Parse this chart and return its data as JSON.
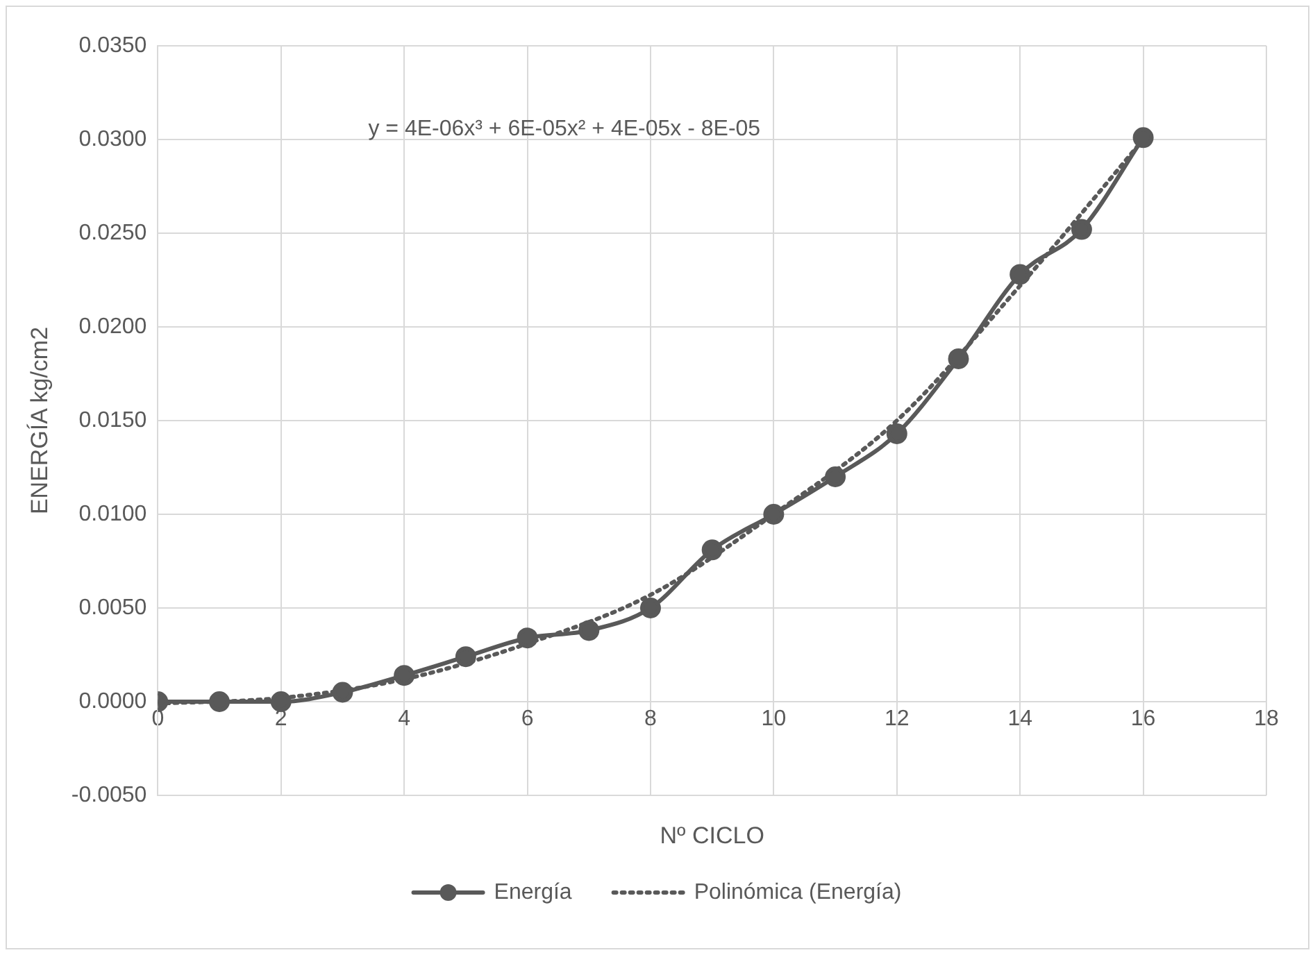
{
  "chart_data": {
    "type": "line",
    "xlabel": "Nº CICLO",
    "ylabel": "ENERGÍA kg/cm2",
    "x": [
      0,
      1,
      2,
      3,
      4,
      5,
      6,
      7,
      8,
      9,
      10,
      11,
      12,
      13,
      14,
      15,
      16
    ],
    "series": [
      {
        "name": "Energía",
        "color": "#595959",
        "values": [
          0,
          0,
          0,
          0.0005,
          0.0014,
          0.0024,
          0.0034,
          0.0038,
          0.005,
          0.0081,
          0.01,
          0.012,
          0.0143,
          0.0183,
          0.0228,
          0.0252,
          0.0301
        ],
        "marker": "circle",
        "line_style": "solid"
      },
      {
        "name": "Polinómica (Energía)",
        "color": "#595959",
        "type": "line",
        "x": [
          0,
          2,
          4,
          6,
          8,
          10,
          12,
          14,
          16
        ],
        "values": [
          -0.0001,
          0.0002,
          0.0012,
          0.0031,
          0.0057,
          0.01,
          0.015,
          0.0222,
          0.03
        ],
        "marker": "none",
        "line_style": "dotted"
      }
    ],
    "annotations": [
      "y = 4E-06x³ + 6E-05x² + 4E-05x - 8E-05"
    ],
    "xlim": [
      0,
      18
    ],
    "xticks": [
      0,
      2,
      4,
      6,
      8,
      10,
      12,
      14,
      16,
      18
    ],
    "ylim": [
      -0.005,
      0.035
    ],
    "yticks": [
      {
        "value": -0.005,
        "label": "-0.0050"
      },
      {
        "value": 0,
        "label": "0.0000"
      },
      {
        "value": 0.005,
        "label": "0.0050"
      },
      {
        "value": 0.01,
        "label": "0.0100"
      },
      {
        "value": 0.015,
        "label": "0.0150"
      },
      {
        "value": 0.02,
        "label": "0.0200"
      },
      {
        "value": 0.025,
        "label": "0.0250"
      },
      {
        "value": 0.03,
        "label": "0.0300"
      },
      {
        "value": 0.035,
        "label": "0.0350"
      }
    ],
    "grid": true,
    "legend": "bottom"
  }
}
